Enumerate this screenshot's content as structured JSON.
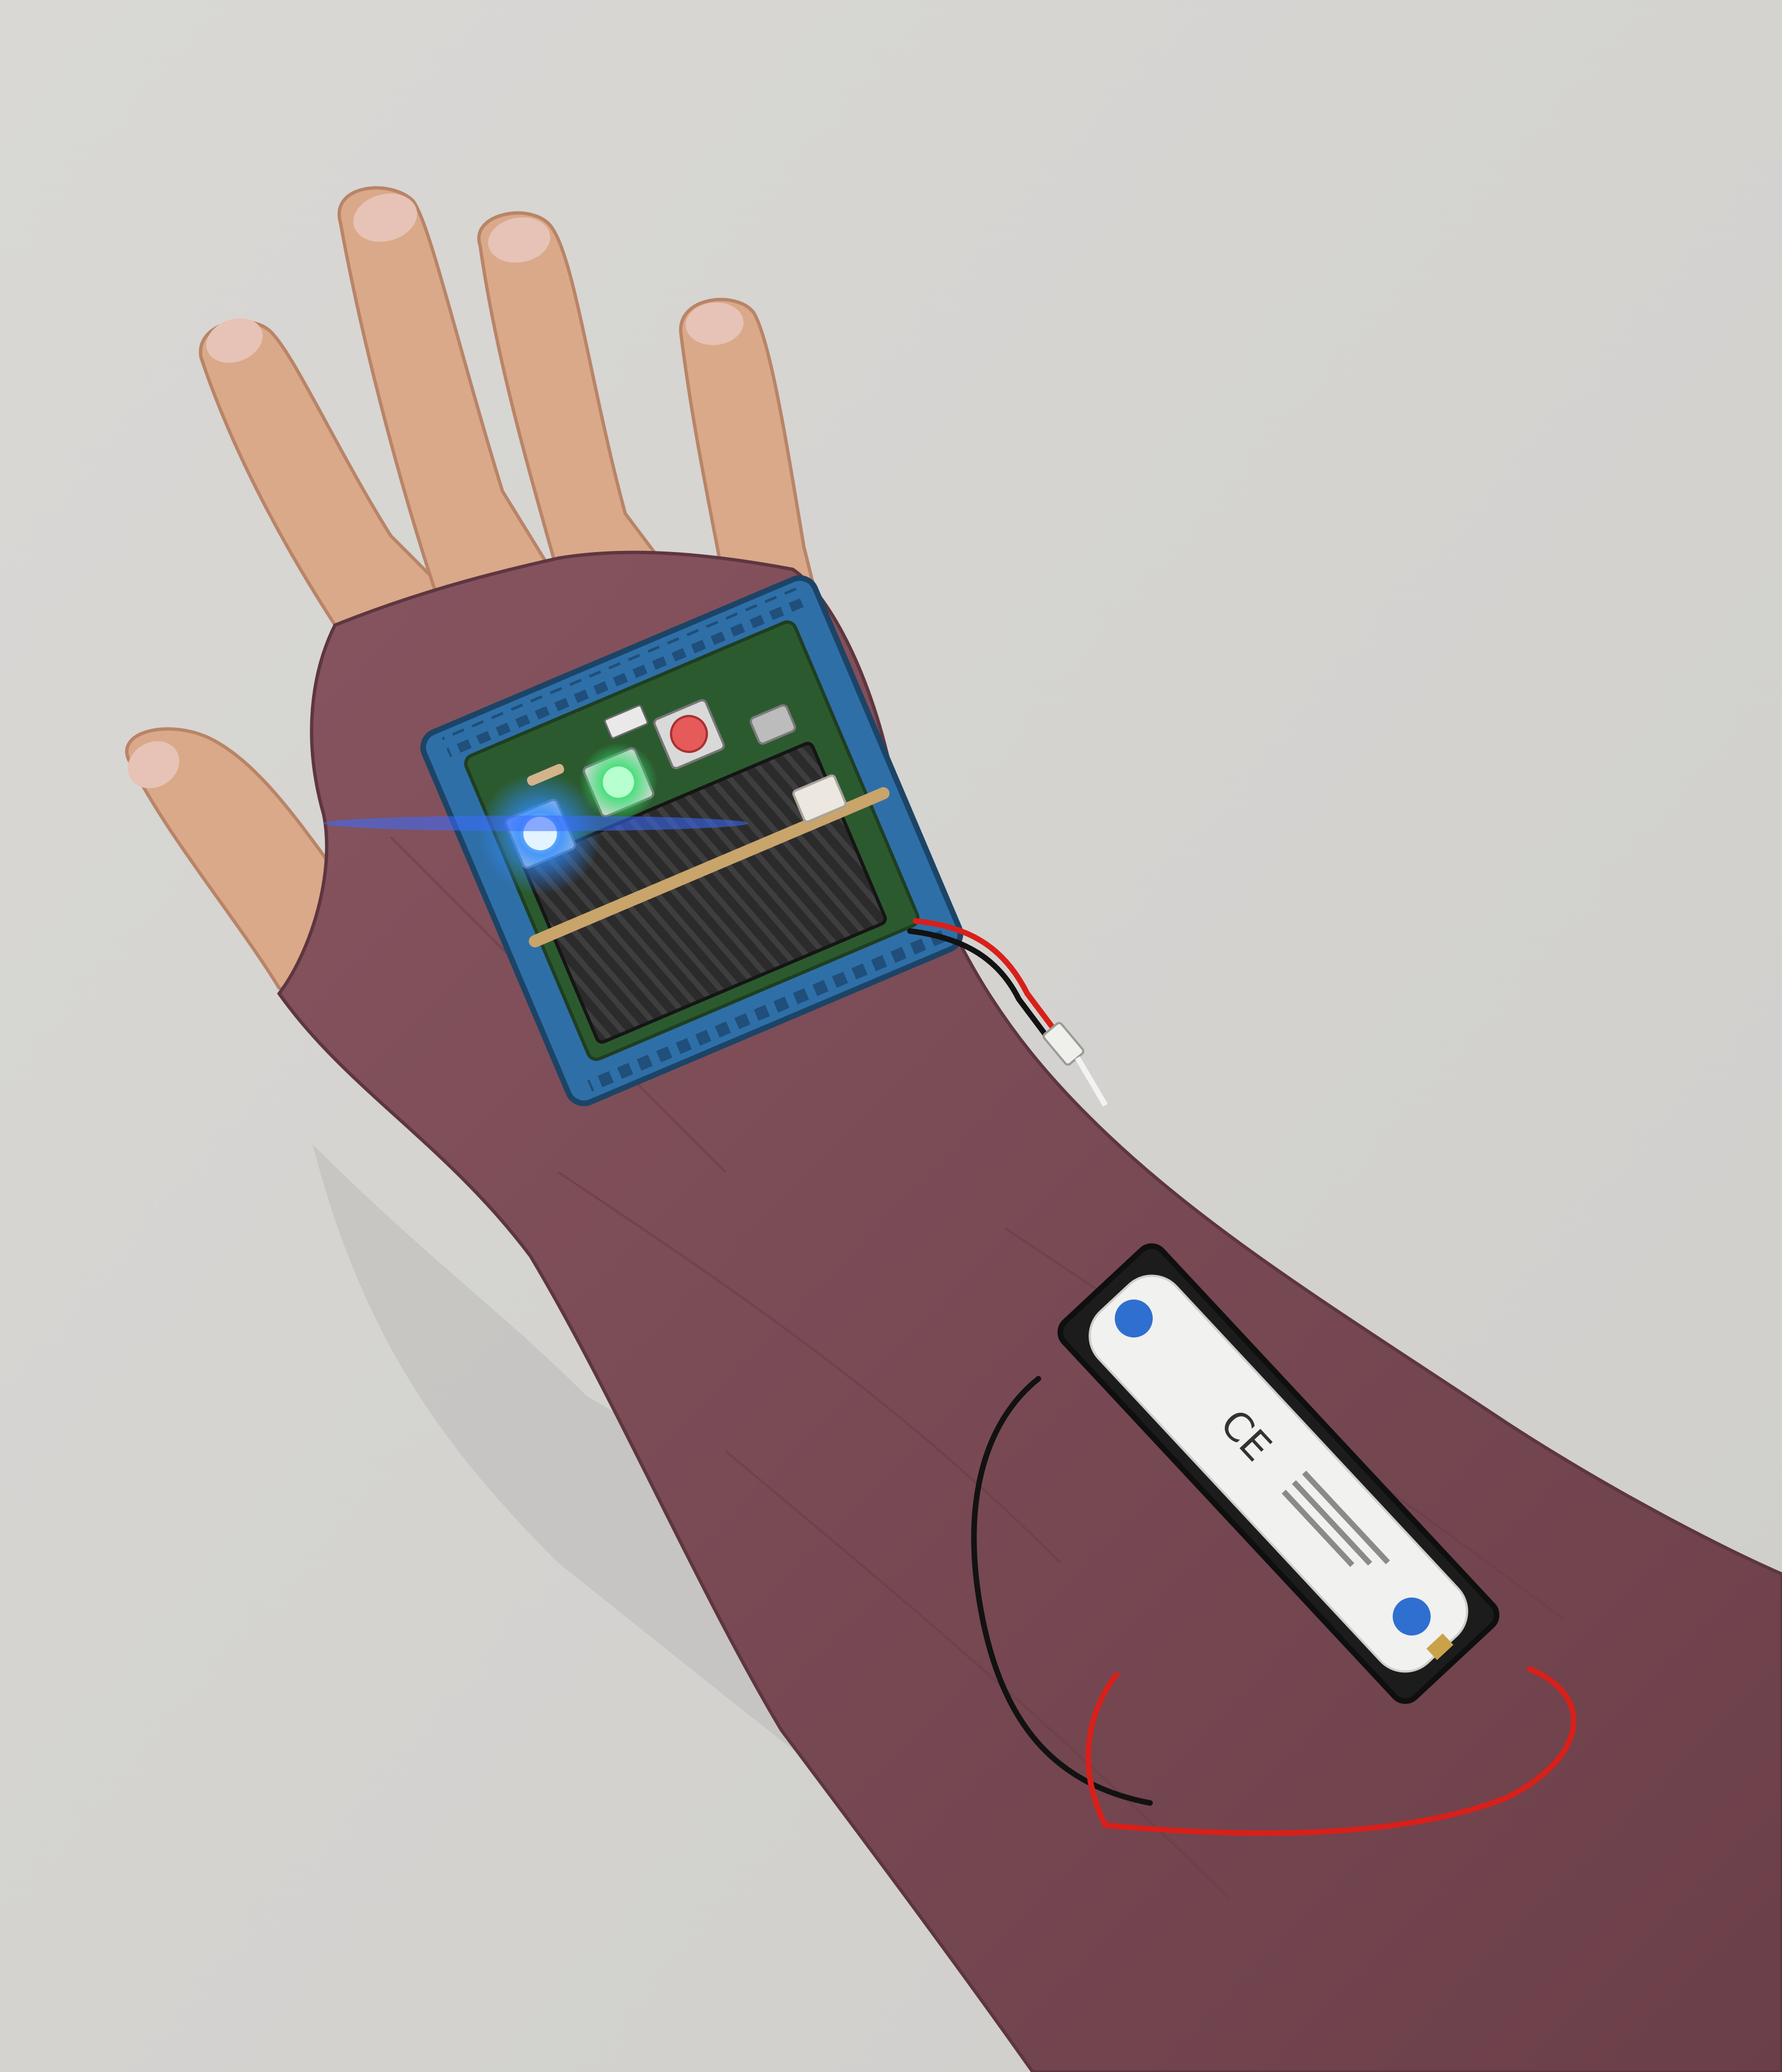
{
  "scene": {
    "subject": "wearable-electronics-glove",
    "colors": {
      "wall": "#d7d6d3",
      "wall_shadow": "#b9b8b5",
      "skin": "#d9a98a",
      "skin_shadow": "#b98467",
      "nail": "#e6c3b6",
      "sleeve": "#7a4a55",
      "sleeve_dark": "#5e3640",
      "board_frame": "#2f6fa8",
      "pcb": "#2c5a2f",
      "heatsink": "#2a2a2a",
      "rubber_band": "#c9a46b",
      "battery_holder": "#1c1c1c",
      "battery": "#f1f1ef",
      "battery_cap": "#2f6fd0",
      "wire_red": "#d8201a",
      "wire_black": "#121212",
      "led_blue": "#2f8cff",
      "led_green": "#2fe06a",
      "button_red": "#e65a5a"
    },
    "visible_markings": {
      "battery_ce_mark": "CE"
    }
  }
}
